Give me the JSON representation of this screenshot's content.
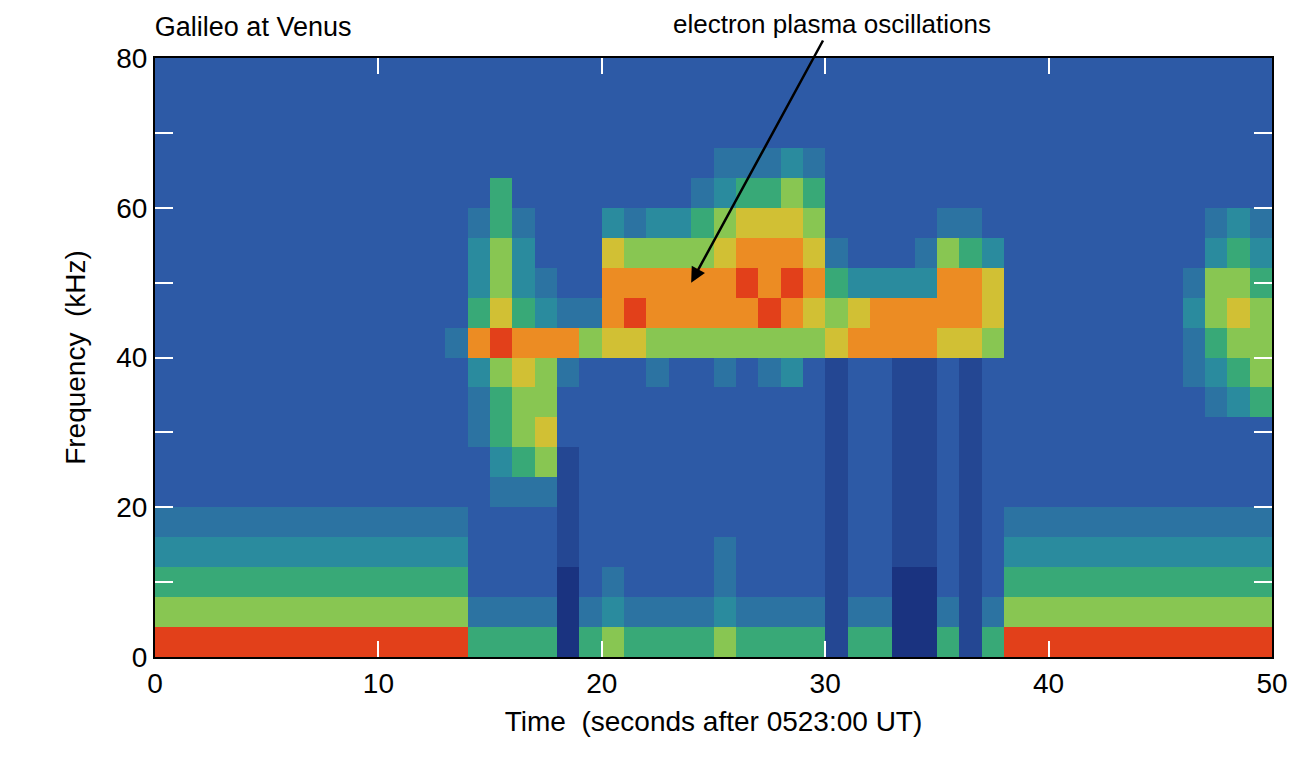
{
  "chart_data": {
    "type": "heatmap",
    "title": "Galileo at Venus",
    "x_label": "Time  (seconds after 0523:00 UT)",
    "y_label": "Frequency  (kHz)",
    "annotations": [
      {
        "text": "electron plasma oscillations",
        "x": 24,
        "y": 50
      }
    ],
    "xlim": [
      0,
      50
    ],
    "ylim": [
      0,
      80
    ],
    "xticks": [
      0,
      10,
      20,
      30,
      40,
      50
    ],
    "yticks": [
      0,
      20,
      40,
      60,
      80
    ],
    "tick_labels": true,
    "x": [
      0.5,
      1.5,
      2.5,
      3.5,
      4.5,
      5.5,
      6.5,
      7.5,
      8.5,
      9.5,
      10.5,
      11.5,
      12.5,
      13.5,
      14.5,
      15.5,
      16.5,
      17.5,
      18.5,
      19.5,
      20.5,
      21.5,
      22.5,
      23.5,
      24.5,
      25.5,
      26.5,
      27.5,
      28.5,
      29.5,
      30.5,
      31.5,
      32.5,
      33.5,
      34.5,
      35.5,
      36.5,
      37.5,
      38.5,
      39.5,
      40.5,
      41.5,
      42.5,
      43.5,
      44.5,
      45.5,
      46.5,
      47.5,
      48.5,
      49.5
    ],
    "y": [
      2,
      6,
      10,
      14,
      18,
      22,
      26,
      30,
      34,
      38,
      42,
      46,
      50,
      54,
      58,
      62,
      66,
      70,
      74,
      78
    ],
    "values": [
      [
        9,
        9,
        9,
        9,
        9,
        9,
        9,
        9,
        9,
        9,
        9,
        9,
        9,
        9,
        5,
        5,
        5,
        5,
        0,
        5,
        6,
        5,
        5,
        5,
        5,
        6,
        5,
        5,
        5,
        5,
        1,
        5,
        5,
        0,
        0,
        5,
        1,
        5,
        9,
        9,
        9,
        9,
        9,
        9,
        9,
        9,
        9,
        9,
        9,
        9
      ],
      [
        6,
        6,
        6,
        6,
        6,
        6,
        6,
        6,
        6,
        6,
        6,
        6,
        6,
        6,
        3,
        3,
        3,
        3,
        0,
        3,
        4,
        3,
        3,
        3,
        3,
        4,
        3,
        3,
        3,
        3,
        1,
        3,
        3,
        0,
        0,
        3,
        1,
        3,
        6,
        6,
        6,
        6,
        6,
        6,
        6,
        6,
        6,
        6,
        6,
        6
      ],
      [
        5,
        5,
        5,
        5,
        5,
        5,
        5,
        5,
        5,
        5,
        5,
        5,
        5,
        5,
        2,
        2,
        2,
        2,
        0,
        2,
        3,
        2,
        2,
        2,
        2,
        3,
        2,
        2,
        2,
        2,
        1,
        2,
        2,
        0,
        0,
        2,
        1,
        2,
        5,
        5,
        5,
        5,
        5,
        5,
        5,
        5,
        5,
        5,
        5,
        5
      ],
      [
        4,
        4,
        4,
        4,
        4,
        4,
        4,
        4,
        4,
        4,
        4,
        4,
        4,
        4,
        2,
        2,
        2,
        2,
        1,
        2,
        2,
        2,
        2,
        2,
        2,
        3,
        2,
        2,
        2,
        2,
        1,
        2,
        2,
        1,
        1,
        2,
        1,
        2,
        4,
        4,
        4,
        4,
        4,
        4,
        4,
        4,
        4,
        4,
        4,
        4
      ],
      [
        3,
        3,
        3,
        3,
        3,
        3,
        3,
        3,
        3,
        3,
        3,
        3,
        3,
        3,
        2,
        2,
        2,
        2,
        1,
        2,
        2,
        2,
        2,
        2,
        2,
        2,
        2,
        2,
        2,
        2,
        1,
        2,
        2,
        1,
        1,
        2,
        1,
        2,
        3,
        3,
        3,
        3,
        3,
        3,
        3,
        3,
        3,
        3,
        3,
        3
      ],
      [
        2,
        2,
        2,
        2,
        2,
        2,
        2,
        2,
        2,
        2,
        2,
        2,
        2,
        2,
        2,
        3,
        3,
        3,
        1,
        2,
        2,
        2,
        2,
        2,
        2,
        2,
        2,
        2,
        2,
        2,
        1,
        2,
        2,
        1,
        1,
        2,
        1,
        2,
        2,
        2,
        2,
        2,
        2,
        2,
        2,
        2,
        2,
        2,
        2,
        2
      ],
      [
        2,
        2,
        2,
        2,
        2,
        2,
        2,
        2,
        2,
        2,
        2,
        2,
        2,
        2,
        2,
        4,
        5,
        6,
        1,
        2,
        2,
        2,
        2,
        2,
        2,
        2,
        2,
        2,
        2,
        2,
        1,
        2,
        2,
        1,
        1,
        2,
        1,
        2,
        2,
        2,
        2,
        2,
        2,
        2,
        2,
        2,
        2,
        2,
        2,
        2
      ],
      [
        2,
        2,
        2,
        2,
        2,
        2,
        2,
        2,
        2,
        2,
        2,
        2,
        2,
        2,
        3,
        5,
        6,
        7,
        2,
        2,
        2,
        2,
        2,
        2,
        2,
        2,
        2,
        2,
        2,
        2,
        1,
        2,
        2,
        1,
        1,
        2,
        1,
        2,
        2,
        2,
        2,
        2,
        2,
        2,
        2,
        2,
        2,
        2,
        2,
        2
      ],
      [
        2,
        2,
        2,
        2,
        2,
        2,
        2,
        2,
        2,
        2,
        2,
        2,
        2,
        2,
        3,
        5,
        6,
        6,
        2,
        2,
        2,
        2,
        2,
        2,
        2,
        2,
        2,
        2,
        2,
        2,
        1,
        2,
        2,
        1,
        1,
        2,
        1,
        2,
        2,
        2,
        2,
        2,
        2,
        2,
        2,
        2,
        2,
        3,
        4,
        5
      ],
      [
        2,
        2,
        2,
        2,
        2,
        2,
        2,
        2,
        2,
        2,
        2,
        2,
        2,
        2,
        4,
        6,
        7,
        6,
        3,
        2,
        2,
        2,
        3,
        2,
        2,
        3,
        2,
        3,
        4,
        2,
        1,
        2,
        2,
        1,
        1,
        2,
        1,
        2,
        2,
        2,
        2,
        2,
        2,
        2,
        2,
        2,
        3,
        4,
        5,
        6
      ],
      [
        2,
        2,
        2,
        2,
        2,
        2,
        2,
        2,
        2,
        2,
        2,
        2,
        2,
        3,
        8,
        9,
        8,
        8,
        8,
        6,
        7,
        7,
        6,
        6,
        6,
        6,
        6,
        6,
        6,
        6,
        7,
        8,
        8,
        8,
        8,
        7,
        7,
        6,
        2,
        2,
        2,
        2,
        2,
        2,
        2,
        2,
        3,
        5,
        6,
        6
      ],
      [
        2,
        2,
        2,
        2,
        2,
        2,
        2,
        2,
        2,
        2,
        2,
        2,
        2,
        2,
        5,
        7,
        5,
        4,
        3,
        3,
        8,
        9,
        8,
        8,
        8,
        8,
        8,
        9,
        8,
        7,
        6,
        7,
        8,
        8,
        8,
        8,
        8,
        7,
        2,
        2,
        2,
        2,
        2,
        2,
        2,
        2,
        4,
        6,
        7,
        6
      ],
      [
        2,
        2,
        2,
        2,
        2,
        2,
        2,
        2,
        2,
        2,
        2,
        2,
        2,
        2,
        4,
        6,
        4,
        3,
        2,
        2,
        8,
        8,
        8,
        8,
        8,
        8,
        9,
        8,
        9,
        8,
        5,
        4,
        4,
        4,
        4,
        8,
        8,
        7,
        2,
        2,
        2,
        2,
        2,
        2,
        2,
        2,
        3,
        6,
        6,
        5
      ],
      [
        2,
        2,
        2,
        2,
        2,
        2,
        2,
        2,
        2,
        2,
        2,
        2,
        2,
        2,
        4,
        6,
        4,
        2,
        2,
        2,
        7,
        6,
        6,
        6,
        6,
        7,
        8,
        8,
        8,
        7,
        3,
        2,
        2,
        2,
        3,
        6,
        5,
        4,
        2,
        2,
        2,
        2,
        2,
        2,
        2,
        2,
        2,
        4,
        5,
        4
      ],
      [
        2,
        2,
        2,
        2,
        2,
        2,
        2,
        2,
        2,
        2,
        2,
        2,
        2,
        2,
        3,
        5,
        3,
        2,
        2,
        2,
        4,
        3,
        4,
        4,
        5,
        6,
        7,
        7,
        7,
        6,
        2,
        2,
        2,
        2,
        2,
        3,
        3,
        2,
        2,
        2,
        2,
        2,
        2,
        2,
        2,
        2,
        2,
        3,
        4,
        3
      ],
      [
        2,
        2,
        2,
        2,
        2,
        2,
        2,
        2,
        2,
        2,
        2,
        2,
        2,
        2,
        2,
        5,
        2,
        2,
        2,
        2,
        2,
        2,
        2,
        2,
        3,
        4,
        5,
        5,
        6,
        5,
        2,
        2,
        2,
        2,
        2,
        2,
        2,
        2,
        2,
        2,
        2,
        2,
        2,
        2,
        2,
        2,
        2,
        2,
        2,
        2
      ],
      [
        2,
        2,
        2,
        2,
        2,
        2,
        2,
        2,
        2,
        2,
        2,
        2,
        2,
        2,
        2,
        2,
        2,
        2,
        2,
        2,
        2,
        2,
        2,
        2,
        2,
        3,
        3,
        3,
        4,
        3,
        2,
        2,
        2,
        2,
        2,
        2,
        2,
        2,
        2,
        2,
        2,
        2,
        2,
        2,
        2,
        2,
        2,
        2,
        2,
        2
      ],
      [
        2,
        2,
        2,
        2,
        2,
        2,
        2,
        2,
        2,
        2,
        2,
        2,
        2,
        2,
        2,
        2,
        2,
        2,
        2,
        2,
        2,
        2,
        2,
        2,
        2,
        2,
        2,
        2,
        2,
        2,
        2,
        2,
        2,
        2,
        2,
        2,
        2,
        2,
        2,
        2,
        2,
        2,
        2,
        2,
        2,
        2,
        2,
        2,
        2,
        2
      ],
      [
        2,
        2,
        2,
        2,
        2,
        2,
        2,
        2,
        2,
        2,
        2,
        2,
        2,
        2,
        2,
        2,
        2,
        2,
        2,
        2,
        2,
        2,
        2,
        2,
        2,
        2,
        2,
        2,
        2,
        2,
        2,
        2,
        2,
        2,
        2,
        2,
        2,
        2,
        2,
        2,
        2,
        2,
        2,
        2,
        2,
        2,
        2,
        2,
        2,
        2
      ],
      [
        2,
        2,
        2,
        2,
        2,
        2,
        2,
        2,
        2,
        2,
        2,
        2,
        2,
        2,
        2,
        2,
        2,
        2,
        2,
        2,
        2,
        2,
        2,
        2,
        2,
        2,
        2,
        2,
        2,
        2,
        2,
        2,
        2,
        2,
        2,
        2,
        2,
        2,
        2,
        2,
        2,
        2,
        2,
        2,
        2,
        2,
        2,
        2,
        2,
        2
      ]
    ]
  }
}
